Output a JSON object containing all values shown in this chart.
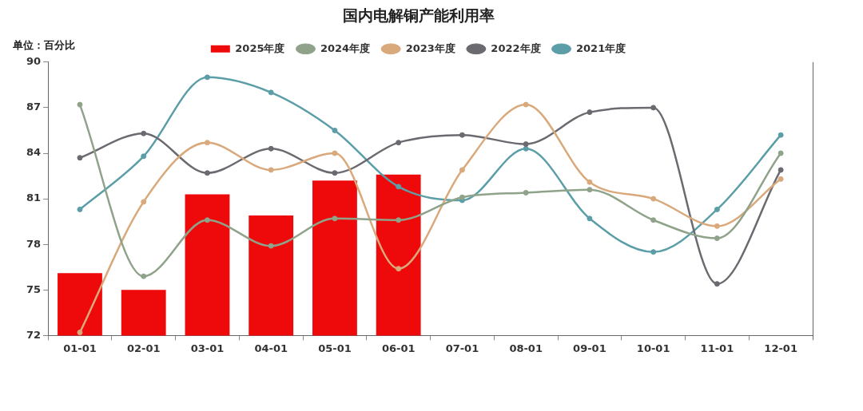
{
  "chart_data": {
    "type": "bar",
    "title": "国内电解铜产能利用率",
    "ylabel": "单位：百分比",
    "categories": [
      "01-01",
      "02-01",
      "03-01",
      "04-01",
      "05-01",
      "06-01",
      "07-01",
      "08-01",
      "09-01",
      "10-01",
      "11-01",
      "12-01"
    ],
    "series": [
      {
        "name": "2025年度",
        "color": "#ee0a0a",
        "values": [
          76.1,
          75.0,
          81.3,
          79.9,
          82.2,
          82.6,
          null,
          null,
          null,
          null,
          null,
          null
        ]
      },
      {
        "name": "2024年度",
        "type": "line",
        "color": "#8fa28a",
        "values": [
          87.2,
          75.9,
          79.6,
          77.9,
          79.7,
          79.6,
          81.1,
          81.4,
          81.6,
          79.6,
          78.4,
          84.0
        ]
      },
      {
        "name": "2023年度",
        "type": "line",
        "color": "#d9a97c",
        "values": [
          72.2,
          80.8,
          84.7,
          82.9,
          84.0,
          76.4,
          82.9,
          87.2,
          82.1,
          81.0,
          79.2,
          82.3
        ]
      },
      {
        "name": "2022年度",
        "type": "line",
        "color": "#6b6a70",
        "values": [
          83.7,
          85.3,
          82.7,
          84.3,
          82.7,
          84.7,
          85.2,
          84.6,
          86.7,
          87.0,
          75.4,
          82.9
        ]
      },
      {
        "name": "2021年度",
        "type": "line",
        "color": "#5b9ea8",
        "values": [
          80.3,
          83.8,
          89.0,
          88.0,
          85.5,
          81.8,
          80.9,
          84.3,
          79.7,
          77.5,
          80.3,
          85.2
        ]
      }
    ],
    "ylim": [
      72,
      90
    ],
    "yticks": [
      72,
      75,
      78,
      81,
      84,
      87,
      90
    ],
    "grid": false,
    "legend": "top",
    "marker": "circle",
    "line_style": "solid"
  }
}
